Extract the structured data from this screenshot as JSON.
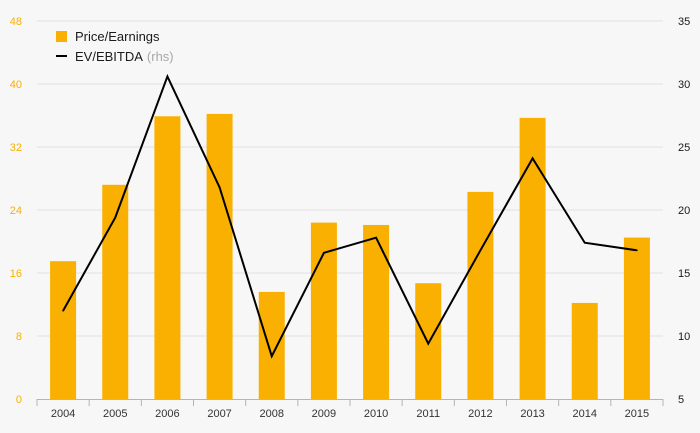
{
  "chart_data": {
    "type": "bar+line",
    "categories": [
      "2004",
      "2005",
      "2006",
      "2007",
      "2008",
      "2009",
      "2010",
      "2011",
      "2012",
      "2013",
      "2014",
      "2015"
    ],
    "series": [
      {
        "name": "Price/Earnings",
        "type": "bar",
        "axis": "left",
        "color": "#f9b000",
        "values": [
          17.5,
          27.2,
          35.9,
          36.2,
          13.6,
          22.4,
          22.1,
          14.7,
          26.3,
          35.7,
          12.2,
          20.5
        ]
      },
      {
        "name": "EV/EBITDA",
        "type": "line",
        "axis": "right",
        "color": "#000000",
        "values": [
          12.0,
          19.4,
          30.6,
          21.8,
          8.4,
          16.6,
          17.8,
          9.4,
          16.8,
          24.1,
          17.4,
          16.8
        ]
      }
    ],
    "legend_note": "(rhs)",
    "left_axis": {
      "min": 0,
      "max": 48,
      "ticks": [
        "0",
        "8",
        "16",
        "24",
        "32",
        "40",
        "48"
      ],
      "color": "#f9b000"
    },
    "right_axis": {
      "min": 5,
      "max": 35,
      "ticks": [
        "5",
        "10",
        "15",
        "20",
        "25",
        "30",
        "35"
      ],
      "color": "#1a1a1a"
    },
    "grid": true,
    "legend_position": "top-left"
  }
}
